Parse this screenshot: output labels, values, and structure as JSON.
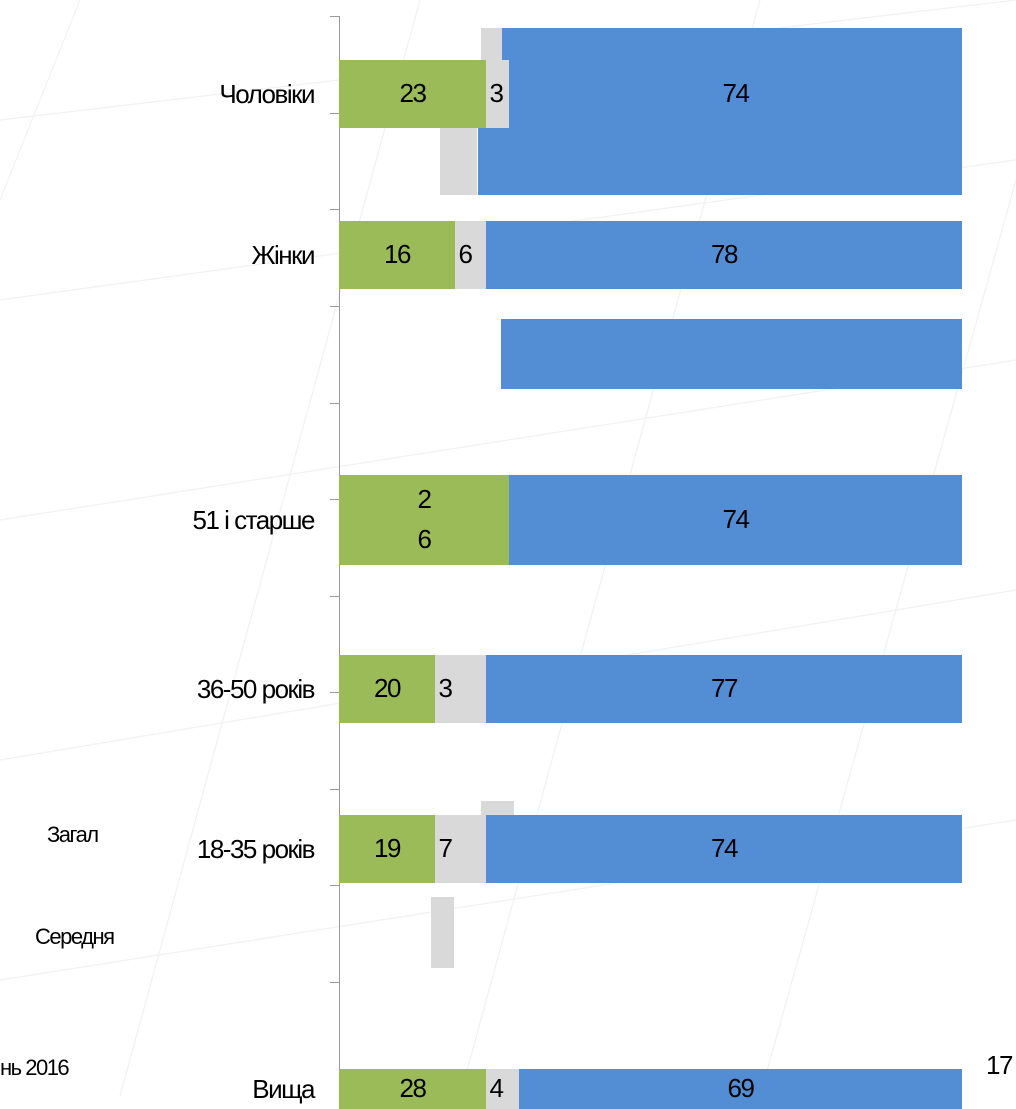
{
  "colors": {
    "green": "#9bbb59",
    "gray": "#d9d9d9",
    "blue": "#538ed5"
  },
  "chart_data": {
    "type": "bar",
    "orientation": "horizontal",
    "stacked": true,
    "categories": [
      "Чоловіки",
      "Жінки",
      "51 і старше",
      "36-50 років",
      "18-35 років",
      "Вища"
    ],
    "series": [
      {
        "values": [
          23,
          16,
          26,
          20,
          19,
          28
        ]
      },
      {
        "values": [
          3,
          6,
          null,
          3,
          7,
          4
        ]
      },
      {
        "values": [
          74,
          78,
          74,
          77,
          74,
          69
        ]
      }
    ],
    "value_labels": [
      [
        "23",
        "3",
        "74"
      ],
      [
        "16",
        "6",
        "78"
      ],
      [
        "2\n6",
        "",
        "74"
      ],
      [
        "20",
        "3",
        "77"
      ],
      [
        "19",
        "7",
        "74"
      ],
      [
        "28",
        "4",
        "69"
      ]
    ],
    "xlim": [
      0,
      100
    ],
    "grid": false,
    "legend": "none"
  },
  "stray_text": {
    "zagal": "Загал",
    "serednia": "Середня",
    "date_fragment": "нь 2016",
    "number_17": "17"
  }
}
